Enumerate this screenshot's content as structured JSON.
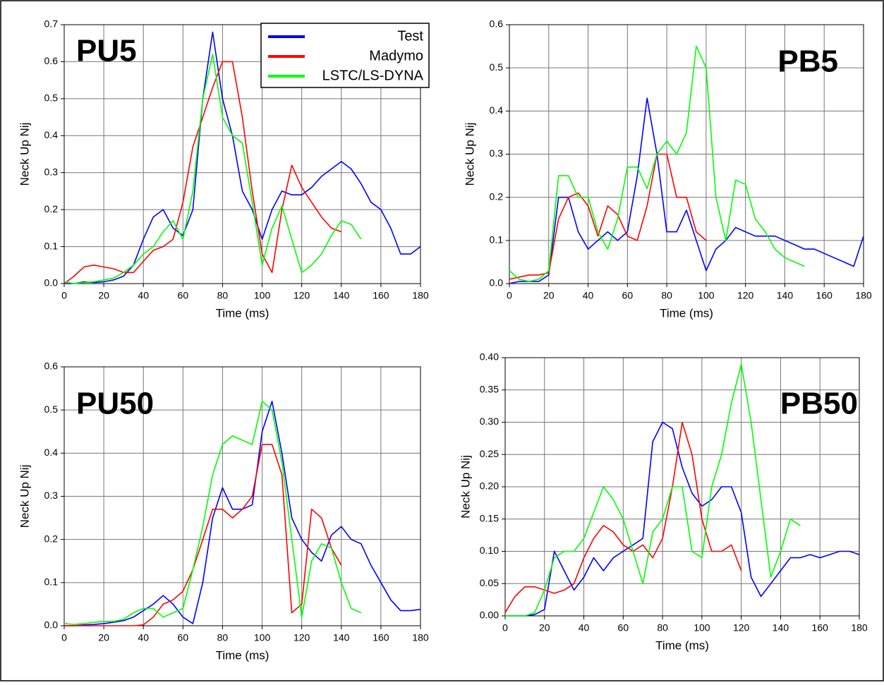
{
  "chart_data": [
    {
      "type": "line",
      "title": "PU5",
      "xlabel": "Time (ms)",
      "ylabel": "Neck Up Nij",
      "legend": "top-center",
      "grid": true,
      "xlim": [
        0,
        180
      ],
      "xticks": [
        0,
        20,
        40,
        60,
        80,
        100,
        120,
        140,
        160,
        180
      ],
      "ylim": [
        0,
        0.7
      ],
      "yticks": [
        {
          "value": 0,
          "label": "0.0"
        },
        0.1,
        0.2,
        0.3,
        0.4,
        0.5,
        0.6,
        0.7
      ],
      "x": [
        0,
        5,
        10,
        15,
        20,
        25,
        30,
        35,
        40,
        45,
        50,
        55,
        60,
        65,
        70,
        75,
        80,
        85,
        90,
        95,
        100,
        105,
        110,
        115,
        120,
        125,
        130,
        135,
        140,
        145,
        150,
        155,
        160,
        165,
        170,
        175,
        180
      ],
      "series": [
        {
          "name": "Test",
          "color": "#0000ff",
          "values": [
            0,
            0,
            0.005,
            0.003,
            0.005,
            0.01,
            0.02,
            0.05,
            0.12,
            0.18,
            0.2,
            0.15,
            0.13,
            0.2,
            0.5,
            0.68,
            0.5,
            0.4,
            0.25,
            0.2,
            0.12,
            0.2,
            0.25,
            0.24,
            0.24,
            0.26,
            0.29,
            0.31,
            0.33,
            0.31,
            0.27,
            0.22,
            0.2,
            0.15,
            0.08,
            0.08,
            0.1
          ]
        },
        {
          "name": "Madymo",
          "color": "#ff0000",
          "values": [
            0,
            0.02,
            0.045,
            0.05,
            0.045,
            0.04,
            0.03,
            0.03,
            0.06,
            0.09,
            0.1,
            0.12,
            0.22,
            0.37,
            0.45,
            0.53,
            0.6,
            0.6,
            0.45,
            0.25,
            0.08,
            0.03,
            0.2,
            0.32,
            0.26,
            0.22,
            0.18,
            0.15,
            0.14,
            null,
            null,
            null,
            null,
            null,
            null,
            null,
            null
          ]
        },
        {
          "name": "LSTC/LS-DYNA",
          "color": "#00ff00",
          "values": [
            0.005,
            0,
            0.003,
            0.005,
            0.01,
            0.015,
            0.03,
            0.05,
            0.08,
            0.1,
            0.14,
            0.17,
            0.12,
            0.25,
            0.5,
            0.62,
            0.45,
            0.4,
            0.38,
            0.22,
            0.05,
            0.15,
            0.21,
            0.12,
            0.03,
            0.05,
            0.08,
            0.13,
            0.17,
            0.16,
            0.12,
            null,
            null,
            null,
            null,
            null,
            null
          ]
        }
      ]
    },
    {
      "type": "line",
      "title": "PB5",
      "xlabel": "Time (ms)",
      "ylabel": "Neck Up Nij",
      "grid": true,
      "xlim": [
        0,
        180
      ],
      "xticks": [
        0,
        20,
        40,
        60,
        80,
        100,
        120,
        140,
        160,
        180
      ],
      "ylim": [
        0,
        0.6
      ],
      "yticks": [
        {
          "value": 0,
          "label": "0.0"
        },
        0.1,
        0.2,
        0.3,
        0.4,
        0.5,
        0.6
      ],
      "x": [
        0,
        5,
        10,
        15,
        20,
        25,
        30,
        35,
        40,
        45,
        50,
        55,
        60,
        65,
        70,
        75,
        80,
        85,
        90,
        95,
        100,
        105,
        110,
        115,
        120,
        125,
        130,
        135,
        140,
        145,
        150,
        155,
        160,
        165,
        170,
        175,
        180
      ],
      "series": [
        {
          "color": "#0000ff",
          "values": [
            0,
            0.005,
            0.005,
            0.005,
            0.02,
            0.2,
            0.2,
            0.12,
            0.08,
            0.1,
            0.12,
            0.1,
            0.12,
            0.25,
            0.43,
            0.3,
            0.12,
            0.12,
            0.17,
            0.1,
            0.03,
            0.08,
            0.1,
            0.13,
            0.12,
            0.11,
            0.11,
            0.11,
            0.1,
            0.09,
            0.08,
            0.08,
            0.07,
            0.06,
            0.05,
            0.04,
            0.11
          ]
        },
        {
          "color": "#ff0000",
          "values": [
            0.01,
            0.015,
            0.02,
            0.02,
            0.025,
            0.15,
            0.2,
            0.21,
            0.18,
            0.11,
            0.18,
            0.16,
            0.11,
            0.1,
            0.18,
            0.3,
            0.3,
            0.2,
            0.2,
            0.12,
            0.1,
            null,
            null,
            null,
            null,
            null,
            null,
            null,
            null,
            null,
            null,
            null,
            null,
            null,
            null,
            null,
            null
          ]
        },
        {
          "color": "#00ff00",
          "values": [
            0.03,
            0.01,
            0.005,
            0.01,
            0.03,
            0.25,
            0.25,
            0.2,
            0.2,
            0.12,
            0.08,
            0.15,
            0.27,
            0.27,
            0.22,
            0.3,
            0.33,
            0.3,
            0.35,
            0.55,
            0.5,
            0.2,
            0.1,
            0.24,
            0.23,
            0.15,
            0.12,
            0.08,
            0.06,
            0.05,
            0.04,
            null,
            null,
            null,
            null,
            null,
            null
          ]
        }
      ]
    },
    {
      "type": "line",
      "title": "PU50",
      "xlabel": "Time (ms)",
      "ylabel": "Neck Up Nij",
      "grid": true,
      "xlim": [
        0,
        180
      ],
      "xticks": [
        0,
        20,
        40,
        60,
        80,
        100,
        120,
        140,
        160,
        180
      ],
      "ylim": [
        0,
        0.6
      ],
      "yticks": [
        {
          "value": 0,
          "label": "0.0"
        },
        0.1,
        0.2,
        0.3,
        0.4,
        0.5,
        0.6
      ],
      "x": [
        0,
        5,
        10,
        15,
        20,
        25,
        30,
        35,
        40,
        45,
        50,
        55,
        60,
        65,
        70,
        75,
        80,
        85,
        90,
        95,
        100,
        105,
        110,
        115,
        120,
        125,
        130,
        135,
        140,
        145,
        150,
        155,
        160,
        165,
        170,
        175,
        180
      ],
      "series": [
        {
          "color": "#0000ff",
          "values": [
            0,
            0,
            0.002,
            0.003,
            0.005,
            0.008,
            0.012,
            0.02,
            0.035,
            0.05,
            0.07,
            0.05,
            0.02,
            0.005,
            0.1,
            0.25,
            0.32,
            0.27,
            0.27,
            0.28,
            0.45,
            0.52,
            0.4,
            0.25,
            0.2,
            0.17,
            0.15,
            0.21,
            0.23,
            0.2,
            0.19,
            0.14,
            0.1,
            0.06,
            0.035,
            0.035,
            0.038
          ]
        },
        {
          "color": "#ff0000",
          "values": [
            0,
            0,
            0,
            0,
            0,
            0,
            0,
            0,
            0.002,
            0.02,
            0.05,
            0.06,
            0.08,
            0.13,
            0.2,
            0.27,
            0.27,
            0.25,
            0.27,
            0.3,
            0.42,
            0.42,
            0.35,
            0.03,
            0.05,
            0.27,
            0.25,
            0.18,
            0.14,
            null,
            null,
            null,
            null,
            null,
            null,
            null,
            null
          ]
        },
        {
          "color": "#00ff00",
          "values": [
            0.005,
            0.003,
            0.005,
            0.008,
            0.01,
            0.01,
            0.015,
            0.03,
            0.04,
            0.04,
            0.02,
            0.03,
            0.04,
            0.13,
            0.23,
            0.35,
            0.42,
            0.44,
            0.43,
            0.42,
            0.52,
            0.5,
            0.38,
            0.2,
            0.02,
            0.15,
            0.19,
            0.18,
            0.1,
            0.04,
            0.03,
            null,
            null,
            null,
            null,
            null,
            null
          ]
        }
      ]
    },
    {
      "type": "line",
      "title": "PB50",
      "xlabel": "Time (ms)",
      "ylabel": "Neck Up Nij",
      "grid": true,
      "xlim": [
        0,
        180
      ],
      "xticks": [
        0,
        20,
        40,
        60,
        80,
        100,
        120,
        140,
        160,
        180
      ],
      "ylim": [
        0,
        0.4
      ],
      "yticks": [
        {
          "value": 0,
          "label": "0.00"
        },
        0.05,
        {
          "value": 0.1,
          "label": "0.10"
        },
        0.15,
        {
          "value": 0.2,
          "label": "0.20"
        },
        0.25,
        {
          "value": 0.3,
          "label": "0.30"
        },
        0.35,
        {
          "value": 0.4,
          "label": "0.40"
        }
      ],
      "x": [
        0,
        5,
        10,
        15,
        20,
        25,
        30,
        35,
        40,
        45,
        50,
        55,
        60,
        65,
        70,
        75,
        80,
        85,
        90,
        95,
        100,
        105,
        110,
        115,
        120,
        125,
        130,
        135,
        140,
        145,
        150,
        155,
        160,
        165,
        170,
        175,
        180
      ],
      "series": [
        {
          "color": "#0000ff",
          "values": [
            0,
            0,
            0,
            0.002,
            0.01,
            0.1,
            0.07,
            0.04,
            0.06,
            0.09,
            0.07,
            0.09,
            0.1,
            0.11,
            0.12,
            0.27,
            0.3,
            0.29,
            0.23,
            0.19,
            0.17,
            0.18,
            0.2,
            0.2,
            0.16,
            0.06,
            0.03,
            0.05,
            0.07,
            0.09,
            0.09,
            0.095,
            0.09,
            0.095,
            0.1,
            0.1,
            0.095
          ]
        },
        {
          "color": "#ff0000",
          "values": [
            0.005,
            0.03,
            0.045,
            0.045,
            0.04,
            0.035,
            0.04,
            0.05,
            0.09,
            0.12,
            0.14,
            0.13,
            0.11,
            0.1,
            0.11,
            0.09,
            0.12,
            0.2,
            0.3,
            0.25,
            0.15,
            0.1,
            0.1,
            0.11,
            0.07,
            null,
            null,
            null,
            null,
            null,
            null,
            null,
            null,
            null,
            null,
            null,
            null
          ]
        },
        {
          "color": "#00ff00",
          "values": [
            0,
            0,
            0,
            0.005,
            0.04,
            0.09,
            0.1,
            0.1,
            0.12,
            0.16,
            0.2,
            0.18,
            0.15,
            0.1,
            0.05,
            0.13,
            0.15,
            0.2,
            0.2,
            0.1,
            0.09,
            0.2,
            0.25,
            0.33,
            0.39,
            0.3,
            0.18,
            0.06,
            0.1,
            0.15,
            0.14,
            null,
            null,
            null,
            null,
            null,
            null
          ]
        }
      ]
    }
  ]
}
